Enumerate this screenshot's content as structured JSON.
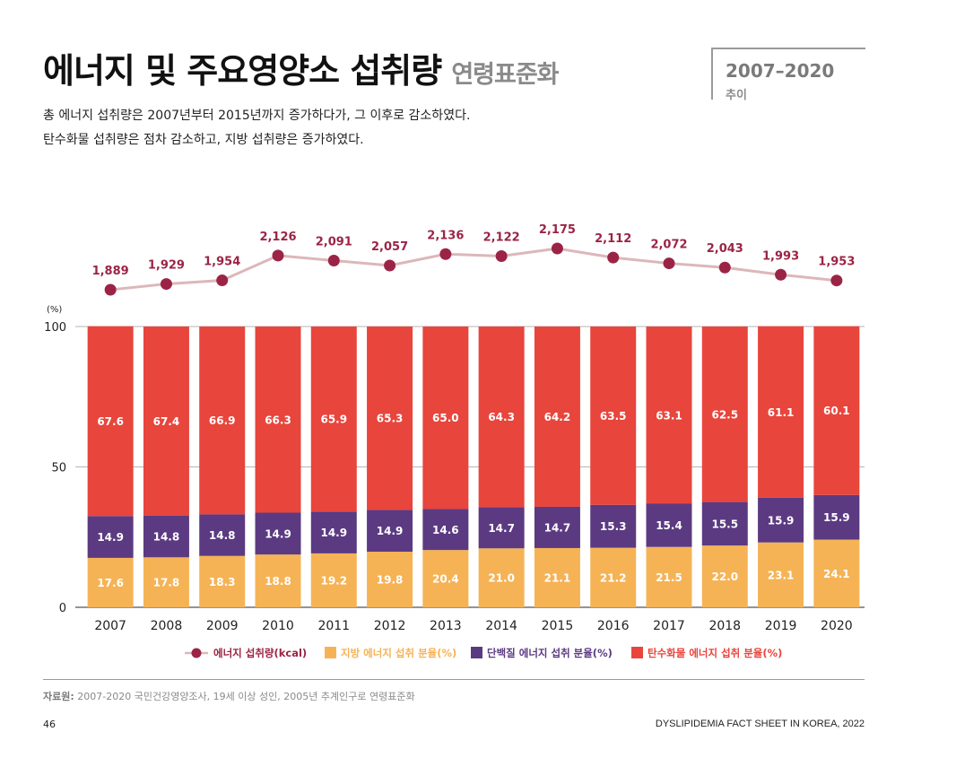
{
  "header": {
    "title": "에너지 및 주요영양소 섭취량",
    "subtitle": "연령표준화",
    "period": "2007–2020",
    "period_sub": "추이",
    "desc_line1": "총 에너지 섭취량은 2007년부터 2015년까지 증가하다가, 그 이후로 감소하였다.",
    "desc_line2": "탄수화물 섭취량은 점차 감소하고, 지방 섭취량은 증가하였다."
  },
  "chart_data": {
    "type": "bar",
    "stacked": true,
    "categories": [
      "2007",
      "2008",
      "2009",
      "2010",
      "2011",
      "2012",
      "2013",
      "2014",
      "2015",
      "2016",
      "2017",
      "2018",
      "2019",
      "2020"
    ],
    "y_unit": "(%)",
    "ylim": [
      0,
      100
    ],
    "yticks": [
      0,
      50,
      100
    ],
    "grid": true,
    "legend_position": "bottom",
    "series": [
      {
        "name": "지방 에너지 섭취 분율(%)",
        "color": "#f5b356",
        "values": [
          17.6,
          17.8,
          18.3,
          18.8,
          19.2,
          19.8,
          20.4,
          21.0,
          21.1,
          21.2,
          21.5,
          22.0,
          23.1,
          24.1
        ]
      },
      {
        "name": "단백질 에너지 섭취 분율(%)",
        "color": "#5b3a82",
        "values": [
          14.9,
          14.8,
          14.8,
          14.9,
          14.9,
          14.9,
          14.6,
          14.7,
          14.7,
          15.3,
          15.4,
          15.5,
          15.9,
          15.9
        ]
      },
      {
        "name": "탄수화물 에너지 섭취 분율(%)",
        "color": "#e8453c",
        "values": [
          67.6,
          67.4,
          66.9,
          66.3,
          65.9,
          65.3,
          65.0,
          64.3,
          64.2,
          63.5,
          63.1,
          62.5,
          61.1,
          60.1
        ]
      }
    ],
    "line_series": {
      "name": "에너지 섭취량(kcal)",
      "color": "#9b2446",
      "line_color": "#dcb7b9",
      "values": [
        1889,
        1929,
        1954,
        2126,
        2091,
        2057,
        2136,
        2122,
        2175,
        2112,
        2072,
        2043,
        1993,
        1953
      ],
      "labels": [
        "1,889",
        "1,929",
        "1,954",
        "2,126",
        "2,091",
        "2,057",
        "2,136",
        "2,122",
        "2,175",
        "2,112",
        "2,072",
        "2,043",
        "1,993",
        "1,953"
      ]
    }
  },
  "footer": {
    "source_label": "자료원:",
    "source_text": " 2007-2020 국민건강영양조사, 19세 이상 성인, 2005년 추계인구로 연령표준화",
    "page_number": "46",
    "publication": "DYSLIPIDEMIA FACT SHEET IN KOREA, 2022"
  }
}
